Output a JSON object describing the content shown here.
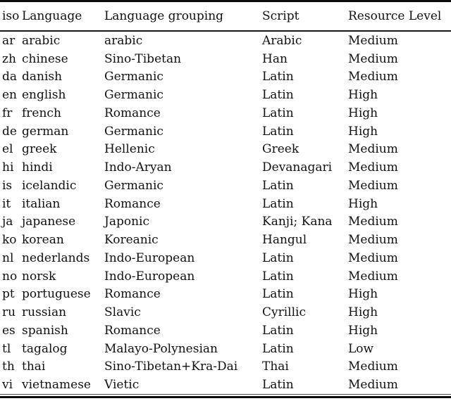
{
  "page": {
    "background_color": "#ffffff",
    "text_color": "#111111",
    "rule_color": "#0c0c0c"
  },
  "table": {
    "columns": [
      {
        "key": "iso",
        "label": "iso"
      },
      {
        "key": "language",
        "label": "Language"
      },
      {
        "key": "grouping",
        "label": "Language grouping"
      },
      {
        "key": "script",
        "label": "Script"
      },
      {
        "key": "resource",
        "label": "Resource Level"
      }
    ],
    "rows": [
      [
        "ar",
        "arabic",
        "arabic",
        "Arabic",
        "Medium"
      ],
      [
        "zh",
        "chinese",
        "Sino-Tibetan",
        "Han",
        "Medium"
      ],
      [
        "da",
        "danish",
        "Germanic",
        "Latin",
        "Medium"
      ],
      [
        "en",
        "english",
        "Germanic",
        "Latin",
        "High"
      ],
      [
        "fr",
        "french",
        "Romance",
        "Latin",
        "High"
      ],
      [
        "de",
        "german",
        "Germanic",
        "Latin",
        "High"
      ],
      [
        "el",
        "greek",
        "Hellenic",
        "Greek",
        "Medium"
      ],
      [
        "hi",
        "hindi",
        "Indo-Aryan",
        "Devanagari",
        "Medium"
      ],
      [
        "is",
        "icelandic",
        "Germanic",
        "Latin",
        "Medium"
      ],
      [
        "it",
        "italian",
        "Romance",
        "Latin",
        "High"
      ],
      [
        "ja",
        "japanese",
        "Japonic",
        "Kanji; Kana",
        "Medium"
      ],
      [
        "ko",
        "korean",
        "Koreanic",
        "Hangul",
        "Medium"
      ],
      [
        "nl",
        "nederlands",
        "Indo-European",
        "Latin",
        "Medium"
      ],
      [
        "no",
        "norsk",
        "Indo-European",
        "Latin",
        "Medium"
      ],
      [
        "pt",
        "portuguese",
        "Romance",
        "Latin",
        "High"
      ],
      [
        "ru",
        "russian",
        "Slavic",
        "Cyrillic",
        "High"
      ],
      [
        "es",
        "spanish",
        "Romance",
        "Latin",
        "High"
      ],
      [
        "tl",
        "tagalog",
        "Malayo-Polynesian",
        "Latin",
        "Low"
      ],
      [
        "th",
        "thai",
        "Sino-Tibetan+Kra-Dai",
        "Thai",
        "Medium"
      ],
      [
        "vi",
        "vietnamese",
        "Vietic",
        "Latin",
        "Medium"
      ]
    ]
  }
}
